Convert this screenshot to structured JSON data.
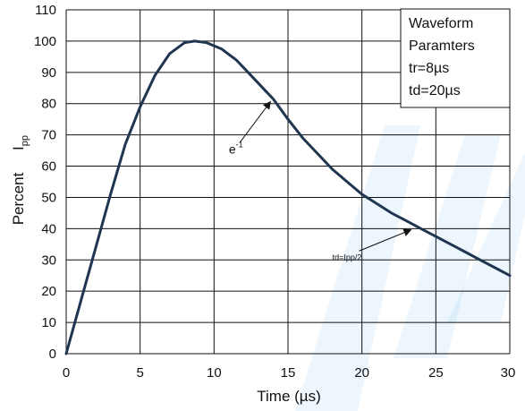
{
  "chart_data": {
    "type": "line",
    "xlabel": "Time (µs)",
    "ylabel": {
      "main": "Percent",
      "symbol": "I",
      "subscript": "pp"
    },
    "xlim": [
      0,
      30
    ],
    "ylim": [
      0,
      110
    ],
    "x_ticks": [
      0,
      5,
      10,
      15,
      20,
      25,
      30
    ],
    "y_ticks": [
      0,
      10,
      20,
      30,
      40,
      50,
      60,
      70,
      80,
      90,
      100,
      110
    ],
    "grid": true,
    "legend_box": {
      "placement": "top-right",
      "lines": [
        "Waveform",
        "Paramters",
        "tr=8µs",
        "td=20µs"
      ]
    },
    "series": [
      {
        "color": "#1f3550",
        "x": [
          0,
          1,
          2,
          3,
          4,
          4.5,
          5,
          6,
          7,
          8,
          8.7,
          9.5,
          10.5,
          11.5,
          12.5,
          13.5,
          14,
          15,
          16,
          17,
          18,
          19,
          20,
          21,
          22,
          23,
          24,
          25,
          26,
          27,
          28,
          29,
          30
        ],
        "y": [
          0,
          17,
          34,
          51,
          67,
          73,
          79,
          89,
          96,
          99.5,
          100,
          99.5,
          97.5,
          94,
          89,
          84,
          81.5,
          75,
          69,
          64,
          59,
          55,
          51,
          48,
          45,
          42.5,
          40,
          37.5,
          35,
          32.5,
          30,
          27.5,
          25
        ]
      }
    ],
    "annotations": [
      {
        "label": "e",
        "superscript": "-1",
        "target": [
          14,
          81.5
        ],
        "label_at": [
          11,
          64
        ]
      },
      {
        "label": "td=Ipp/2",
        "target": [
          23.5,
          40.5
        ],
        "label_at": [
          18,
          30
        ]
      }
    ]
  }
}
